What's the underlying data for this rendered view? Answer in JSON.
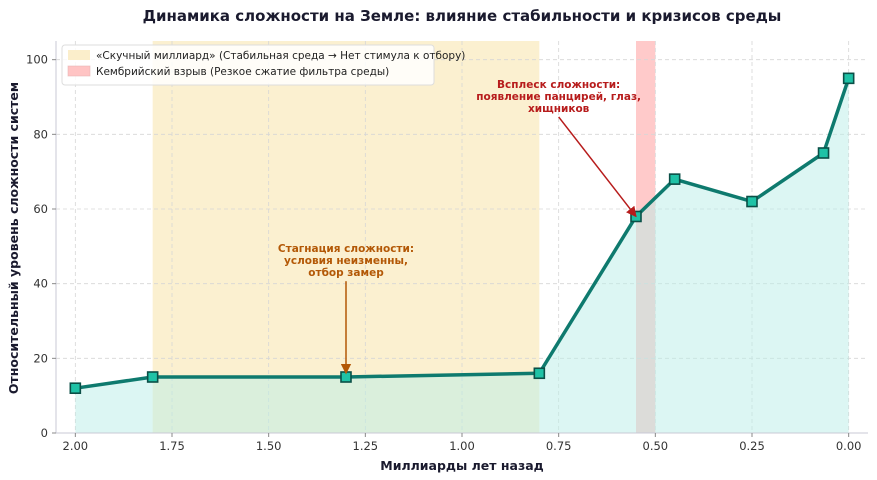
{
  "chart_data": {
    "type": "line",
    "title": "Динамика сложности на Земле: влияние стабильности и кризисов среды",
    "xlabel": "Миллиарды лет назад",
    "ylabel": "Относительный уровень сложности систем",
    "xlim": [
      2.05,
      -0.05
    ],
    "ylim": [
      0,
      105
    ],
    "x_inverted": true,
    "xticks": [
      2.0,
      1.75,
      1.5,
      1.25,
      1.0,
      0.75,
      0.5,
      0.25,
      0.0
    ],
    "xtick_labels": [
      "2.00",
      "1.75",
      "1.50",
      "1.25",
      "1.00",
      "0.75",
      "0.50",
      "0.25",
      "0.00"
    ],
    "yticks": [
      0,
      20,
      40,
      60,
      80,
      100
    ],
    "ytick_labels": [
      "0",
      "20",
      "40",
      "60",
      "80",
      "100"
    ],
    "grid": true,
    "legend_position": "top-left",
    "series": [
      {
        "x": [
          2.0,
          1.8,
          1.3,
          0.8,
          0.55,
          0.45,
          0.25,
          0.065,
          0.0
        ],
        "y": [
          12,
          15,
          15,
          16,
          58,
          68,
          62,
          75,
          95
        ],
        "color": "#0e7a6e",
        "marker_color": "#1fc2a6",
        "fill_color": "#b9ede7"
      }
    ],
    "spans": [
      {
        "label": "«Скучный миллиард» (Стабильная среда → Нет стимула к отбору)",
        "x_from": 1.8,
        "x_to": 0.8,
        "color": "#fbeecb"
      },
      {
        "label": "Кембрийский взрыв (Резкое сжатие фильтра среды)",
        "x_from": 0.55,
        "x_to": 0.5,
        "color": "#ffc4c4"
      }
    ],
    "annotations": [
      {
        "lines": [
          "Стагнация сложности:",
          "условия неизменны,",
          "отбор замер"
        ],
        "color": "#b35806",
        "text_x": 1.3,
        "text_y": 42,
        "arrow_to_x": 1.3,
        "arrow_to_y": 16
      },
      {
        "lines": [
          "Всплеск сложности:",
          "появление панцирей, глаз,",
          "хищников"
        ],
        "color": "#b71c1c",
        "text_x": 0.75,
        "text_y": 86,
        "arrow_to_x": 0.55,
        "arrow_to_y": 58
      }
    ]
  }
}
